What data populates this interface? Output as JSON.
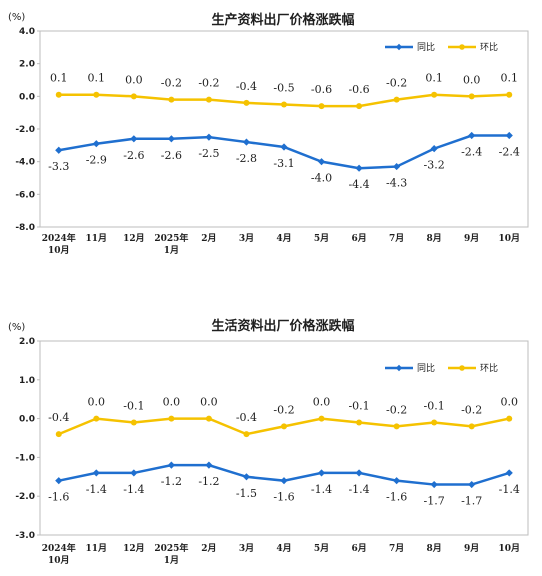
{
  "chart_data": [
    {
      "type": "line",
      "title": "生产资料出厂价格涨跌幅",
      "unit_label": "(%)",
      "categories": [
        [
          "2024年",
          "10月"
        ],
        [
          "11月"
        ],
        [
          "12月"
        ],
        [
          "2025年",
          "1月"
        ],
        [
          "2月"
        ],
        [
          "3月"
        ],
        [
          "4月"
        ],
        [
          "5月"
        ],
        [
          "6月"
        ],
        [
          "7月"
        ],
        [
          "8月"
        ],
        [
          "9月"
        ],
        [
          "10月"
        ]
      ],
      "ylim": [
        -8.0,
        4.0
      ],
      "yticks": [
        "4.0",
        "2.0",
        "0.0",
        "-2.0",
        "-4.0",
        "-6.0",
        "-8.0"
      ],
      "ytick_values": [
        4,
        2,
        0,
        -2,
        -4,
        -6,
        -8
      ],
      "grid": false,
      "legend_position": "top-right",
      "series": [
        {
          "name": "同比",
          "color": "#1f6fcf",
          "marker": "diamond",
          "values": [
            -3.3,
            -2.9,
            -2.6,
            -2.6,
            -2.5,
            -2.8,
            -3.1,
            -4.0,
            -4.4,
            -4.3,
            -3.2,
            -2.4,
            -2.4
          ],
          "labels": [
            "-3.3",
            "-2.9",
            "-2.6",
            "-2.6",
            "-2.5",
            "-2.8",
            "-3.1",
            "-4.0",
            "-4.4",
            "-4.3",
            "-3.2",
            "-2.4",
            "-2.4"
          ],
          "label_position": "below"
        },
        {
          "name": "环比",
          "color": "#f5c200",
          "marker": "circle",
          "values": [
            0.1,
            0.1,
            0.0,
            -0.2,
            -0.2,
            -0.4,
            -0.5,
            -0.6,
            -0.6,
            -0.2,
            0.1,
            0.0,
            0.1
          ],
          "labels": [
            "0.1",
            "0.1",
            "0.0",
            "-0.2",
            "-0.2",
            "-0.4",
            "-0.5",
            "-0.6",
            "-0.6",
            "-0.2",
            "0.1",
            "0.0",
            "0.1"
          ],
          "label_position": "above"
        }
      ]
    },
    {
      "type": "line",
      "title": "生活资料出厂价格涨跌幅",
      "unit_label": "(%)",
      "categories": [
        [
          "2024年",
          "10月"
        ],
        [
          "11月"
        ],
        [
          "12月"
        ],
        [
          "2025年",
          "1月"
        ],
        [
          "2月"
        ],
        [
          "3月"
        ],
        [
          "4月"
        ],
        [
          "5月"
        ],
        [
          "6月"
        ],
        [
          "7月"
        ],
        [
          "8月"
        ],
        [
          "9月"
        ],
        [
          "10月"
        ]
      ],
      "ylim": [
        -3.0,
        2.0
      ],
      "yticks": [
        "2.0",
        "1.0",
        "0.0",
        "-1.0",
        "-2.0",
        "-3.0"
      ],
      "ytick_values": [
        2,
        1,
        0,
        -1,
        -2,
        -3
      ],
      "grid": false,
      "legend_position": "top-right",
      "series": [
        {
          "name": "同比",
          "color": "#1f6fcf",
          "marker": "diamond",
          "values": [
            -1.6,
            -1.4,
            -1.4,
            -1.2,
            -1.2,
            -1.5,
            -1.6,
            -1.4,
            -1.4,
            -1.6,
            -1.7,
            -1.7,
            -1.4
          ],
          "labels": [
            "-1.6",
            "-1.4",
            "-1.4",
            "-1.2",
            "-1.2",
            "-1.5",
            "-1.6",
            "-1.4",
            "-1.4",
            "-1.6",
            "-1.7",
            "-1.7",
            "-1.4"
          ],
          "label_position": "below"
        },
        {
          "name": "环比",
          "color": "#f5c200",
          "marker": "circle",
          "values": [
            -0.4,
            0.0,
            -0.1,
            0.0,
            0.0,
            -0.4,
            -0.2,
            0.0,
            -0.1,
            -0.2,
            -0.1,
            -0.2,
            0.0
          ],
          "labels": [
            "-0.4",
            "0.0",
            "-0.1",
            "0.0",
            "0.0",
            "-0.4",
            "-0.2",
            "0.0",
            "-0.1",
            "-0.2",
            "-0.1",
            "-0.2",
            "0.0"
          ],
          "label_position": "above"
        }
      ]
    }
  ]
}
